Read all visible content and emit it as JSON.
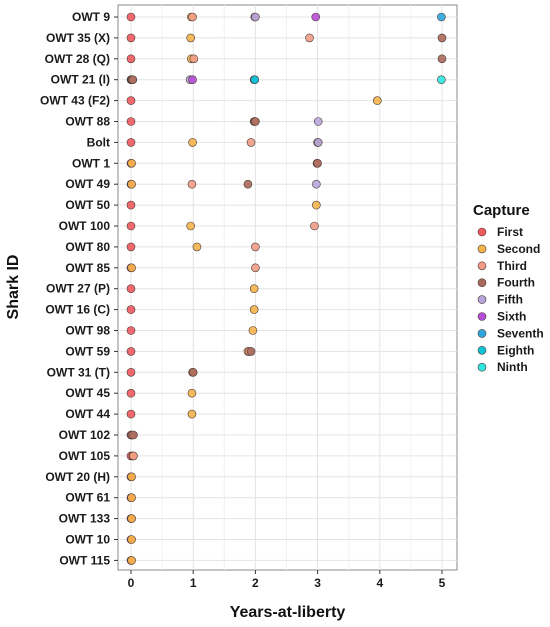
{
  "chart_data": {
    "type": "scatter",
    "xlabel": "Years-at-liberty",
    "ylabel": "Shark ID",
    "xlim": [
      -0.15,
      5.2
    ],
    "xticks": [
      0,
      1,
      2,
      3,
      4,
      5
    ],
    "grid": true,
    "legend": {
      "title": "Capture",
      "placement": "right",
      "entries": [
        "First",
        "Second",
        "Third",
        "Fourth",
        "Fifth",
        "Sixth",
        "Seventh",
        "Eighth",
        "Ninth"
      ]
    },
    "colors": {
      "First": "#f0595e",
      "Second": "#f4b34a",
      "Third": "#f09c86",
      "Fourth": "#a8695c",
      "Fifth": "#b7a6dd",
      "Sixth": "#b64fd6",
      "Seventh": "#2ea6de",
      "Eighth": "#0fc2d8",
      "Ninth": "#2fe6e1"
    },
    "categories": [
      "OWT 9",
      "OWT 35 (X)",
      "OWT 28 (Q)",
      "OWT 21 (I)",
      "OWT 43 (F2)",
      "OWT 88",
      "Bolt",
      "OWT 1",
      "OWT 49",
      "OWT 50",
      "OWT 100",
      "OWT 80",
      "OWT 85",
      "OWT 27 (P)",
      "OWT 16 (C)",
      "OWT 98",
      "OWT 59",
      "OWT 31 (T)",
      "OWT 45",
      "OWT 44",
      "OWT 102",
      "OWT 105",
      "OWT 20 (H)",
      "OWT 61",
      "OWT 133",
      "OWT 10",
      "OWT 115"
    ],
    "series": [
      {
        "name": "First",
        "points": [
          [
            "OWT 9",
            0
          ],
          [
            "OWT 35 (X)",
            0
          ],
          [
            "OWT 28 (Q)",
            0
          ],
          [
            "OWT 21 (I)",
            0
          ],
          [
            "OWT 43 (F2)",
            0
          ],
          [
            "OWT 88",
            0
          ],
          [
            "Bolt",
            0
          ],
          [
            "OWT 1",
            0
          ],
          [
            "OWT 49",
            0
          ],
          [
            "OWT 50",
            0
          ],
          [
            "OWT 100",
            0
          ],
          [
            "OWT 80",
            0
          ],
          [
            "OWT 85",
            0
          ],
          [
            "OWT 27 (P)",
            0
          ],
          [
            "OWT 16 (C)",
            0
          ],
          [
            "OWT 98",
            0
          ],
          [
            "OWT 59",
            0
          ],
          [
            "OWT 31 (T)",
            0
          ],
          [
            "OWT 45",
            0
          ],
          [
            "OWT 44",
            0
          ],
          [
            "OWT 102",
            0
          ],
          [
            "OWT 105",
            0
          ],
          [
            "OWT 20 (H)",
            0
          ],
          [
            "OWT 61",
            0
          ],
          [
            "OWT 133",
            0
          ],
          [
            "OWT 10",
            0
          ],
          [
            "OWT 115",
            0
          ]
        ]
      },
      {
        "name": "Second",
        "points": [
          [
            "OWT 9",
            0.97
          ],
          [
            "OWT 35 (X)",
            0.96
          ],
          [
            "OWT 28 (Q)",
            0.97
          ],
          [
            "OWT 21 (I)",
            0.01
          ],
          [
            "OWT 43 (F2)",
            3.96
          ],
          [
            "OWT 88",
            1.98
          ],
          [
            "Bolt",
            0.99
          ],
          [
            "OWT 1",
            0.01
          ],
          [
            "OWT 49",
            0.01
          ],
          [
            "OWT 50",
            2.98
          ],
          [
            "OWT 100",
            0.96
          ],
          [
            "OWT 80",
            1.06
          ],
          [
            "OWT 85",
            0.01
          ],
          [
            "OWT 27 (P)",
            1.98
          ],
          [
            "OWT 16 (C)",
            1.98
          ],
          [
            "OWT 98",
            1.96
          ],
          [
            "OWT 59",
            1.88
          ],
          [
            "OWT 31 (T)",
            0.99
          ],
          [
            "OWT 45",
            0.98
          ],
          [
            "OWT 44",
            0.98
          ],
          [
            "OWT 102",
            0.01
          ],
          [
            "OWT 105",
            0.03
          ],
          [
            "OWT 20 (H)",
            0.01
          ],
          [
            "OWT 61",
            0.01
          ],
          [
            "OWT 133",
            0.01
          ],
          [
            "OWT 10",
            0.01
          ],
          [
            "OWT 115",
            0.01
          ]
        ]
      },
      {
        "name": "Third",
        "points": [
          [
            "OWT 9",
            0.99
          ],
          [
            "OWT 35 (X)",
            2.87
          ],
          [
            "OWT 28 (Q)",
            1.01
          ],
          [
            "OWT 21 (I)",
            0.02
          ],
          [
            "OWT 88",
            1.99
          ],
          [
            "Bolt",
            1.93
          ],
          [
            "OWT 1",
            2.99
          ],
          [
            "OWT 49",
            0.98
          ],
          [
            "OWT 100",
            2.95
          ],
          [
            "OWT 80",
            2.0
          ],
          [
            "OWT 85",
            2.0
          ],
          [
            "OWT 59",
            1.9
          ],
          [
            "OWT 102",
            0.02
          ],
          [
            "OWT 105",
            0.04
          ]
        ]
      },
      {
        "name": "Fourth",
        "points": [
          [
            "OWT 9",
            1.99
          ],
          [
            "OWT 35 (X)",
            5.0
          ],
          [
            "OWT 28 (Q)",
            5.0
          ],
          [
            "OWT 21 (I)",
            0.03
          ],
          [
            "OWT 88",
            2.0
          ],
          [
            "Bolt",
            3.0
          ],
          [
            "OWT 1",
            3.0
          ],
          [
            "OWT 49",
            1.88
          ],
          [
            "OWT 59",
            1.93
          ],
          [
            "OWT 31 (T)",
            1.0
          ],
          [
            "OWT 102",
            0.04
          ]
        ]
      },
      {
        "name": "Fifth",
        "points": [
          [
            "OWT 9",
            2.0
          ],
          [
            "OWT 21 (I)",
            0.95
          ],
          [
            "OWT 88",
            3.01
          ],
          [
            "Bolt",
            3.01
          ],
          [
            "OWT 49",
            2.98
          ]
        ]
      },
      {
        "name": "Sixth",
        "points": [
          [
            "OWT 9",
            2.97
          ],
          [
            "OWT 21 (I)",
            0.99
          ]
        ]
      },
      {
        "name": "Seventh",
        "points": [
          [
            "OWT 9",
            4.99
          ],
          [
            "OWT 21 (I)",
            1.98
          ]
        ]
      },
      {
        "name": "Eighth",
        "points": [
          [
            "OWT 21 (I)",
            1.99
          ]
        ]
      },
      {
        "name": "Ninth",
        "points": [
          [
            "OWT 21 (I)",
            4.99
          ]
        ]
      }
    ]
  }
}
